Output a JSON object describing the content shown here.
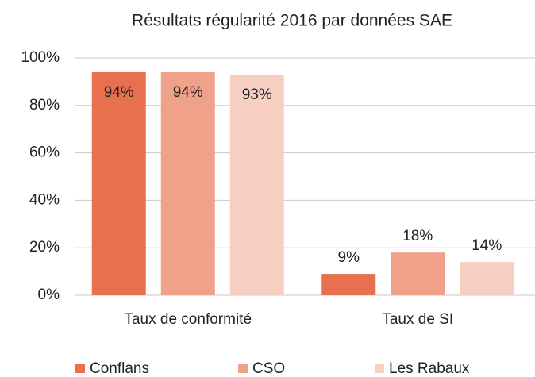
{
  "chart_data": {
    "type": "bar",
    "title": "Résultats régularité 2016 par données SAE",
    "categories": [
      "Taux de conformité",
      "Taux de SI"
    ],
    "series": [
      {
        "name": "Conflans",
        "color": "#e8704e",
        "values": [
          94,
          9
        ],
        "value_labels": [
          "94%",
          "9%"
        ]
      },
      {
        "name": "CSO",
        "color": "#f0a189",
        "values": [
          94,
          18
        ],
        "value_labels": [
          "94%",
          "18%"
        ]
      },
      {
        "name": "Les Rabaux",
        "color": "#f7cfc2",
        "values": [
          93,
          14
        ],
        "value_labels": [
          "93%",
          "14%"
        ]
      }
    ],
    "ylim": [
      0,
      100
    ],
    "yticks": [
      {
        "value": 0,
        "label": "0%"
      },
      {
        "value": 20,
        "label": "20%"
      },
      {
        "value": 40,
        "label": "40%"
      },
      {
        "value": 60,
        "label": "60%"
      },
      {
        "value": 80,
        "label": "80%"
      },
      {
        "value": 100,
        "label": "100%"
      }
    ],
    "grid": true,
    "legend": "bottom"
  }
}
